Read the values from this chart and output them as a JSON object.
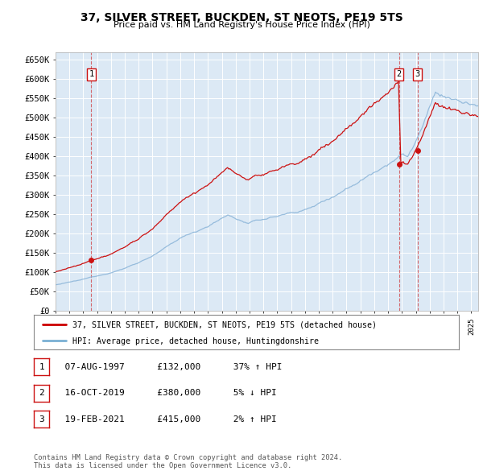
{
  "title": "37, SILVER STREET, BUCKDEN, ST NEOTS, PE19 5TS",
  "subtitle": "Price paid vs. HM Land Registry's House Price Index (HPI)",
  "bg_color": "#dce9f5",
  "ylim": [
    0,
    670000
  ],
  "yticks": [
    0,
    50000,
    100000,
    150000,
    200000,
    250000,
    300000,
    350000,
    400000,
    450000,
    500000,
    550000,
    600000,
    650000
  ],
  "transactions": [
    {
      "date_num": 1997.58,
      "price": 132000,
      "label": "1"
    },
    {
      "date_num": 2019.79,
      "price": 380000,
      "label": "2"
    },
    {
      "date_num": 2021.12,
      "price": 415000,
      "label": "3"
    }
  ],
  "legend_line1": "37, SILVER STREET, BUCKDEN, ST NEOTS, PE19 5TS (detached house)",
  "legend_line2": "HPI: Average price, detached house, Huntingdonshire",
  "legend_color1": "#cc0000",
  "legend_color2": "#7ab0d4",
  "table_rows": [
    {
      "num": "1",
      "date": "07-AUG-1997",
      "price": "£132,000",
      "hpi": "37% ↑ HPI"
    },
    {
      "num": "2",
      "date": "16-OCT-2019",
      "price": "£380,000",
      "hpi": "5% ↓ HPI"
    },
    {
      "num": "3",
      "date": "19-FEB-2021",
      "price": "£415,000",
      "hpi": "2% ↑ HPI"
    }
  ],
  "footer": "Contains HM Land Registry data © Crown copyright and database right 2024.\nThis data is licensed under the Open Government Licence v3.0.",
  "xmin": 1995,
  "xmax": 2025.5
}
